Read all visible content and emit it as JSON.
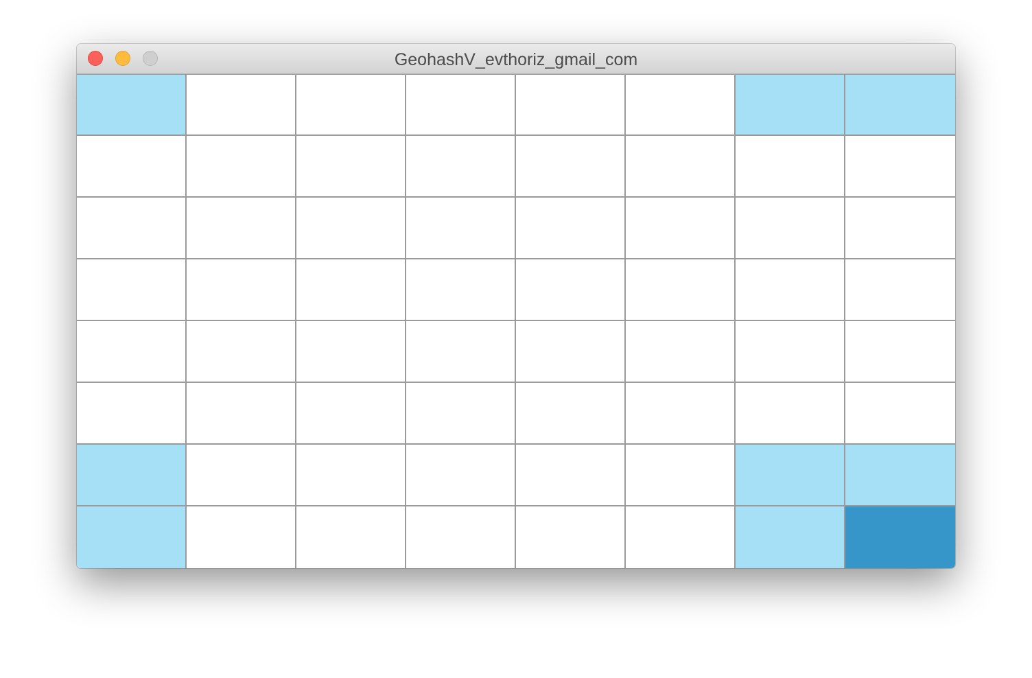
{
  "window": {
    "title": "GeohashV_evthoriz_gmail_com",
    "buttons": [
      "close",
      "minimize",
      "zoom"
    ]
  },
  "colors": {
    "empty": "#ffffff",
    "neighbor": "#a6e0f6",
    "selected": "#3696ca",
    "grid_line": "#9a9a9a"
  },
  "grid": {
    "rows": 8,
    "cols": 8,
    "cells": [
      [
        "neighbor",
        "empty",
        "empty",
        "empty",
        "empty",
        "empty",
        "neighbor",
        "neighbor"
      ],
      [
        "empty",
        "empty",
        "empty",
        "empty",
        "empty",
        "empty",
        "empty",
        "empty"
      ],
      [
        "empty",
        "empty",
        "empty",
        "empty",
        "empty",
        "empty",
        "empty",
        "empty"
      ],
      [
        "empty",
        "empty",
        "empty",
        "empty",
        "empty",
        "empty",
        "empty",
        "empty"
      ],
      [
        "empty",
        "empty",
        "empty",
        "empty",
        "empty",
        "empty",
        "empty",
        "empty"
      ],
      [
        "empty",
        "empty",
        "empty",
        "empty",
        "empty",
        "empty",
        "empty",
        "empty"
      ],
      [
        "neighbor",
        "empty",
        "empty",
        "empty",
        "empty",
        "empty",
        "neighbor",
        "neighbor"
      ],
      [
        "neighbor",
        "empty",
        "empty",
        "empty",
        "empty",
        "empty",
        "neighbor",
        "selected"
      ]
    ]
  }
}
